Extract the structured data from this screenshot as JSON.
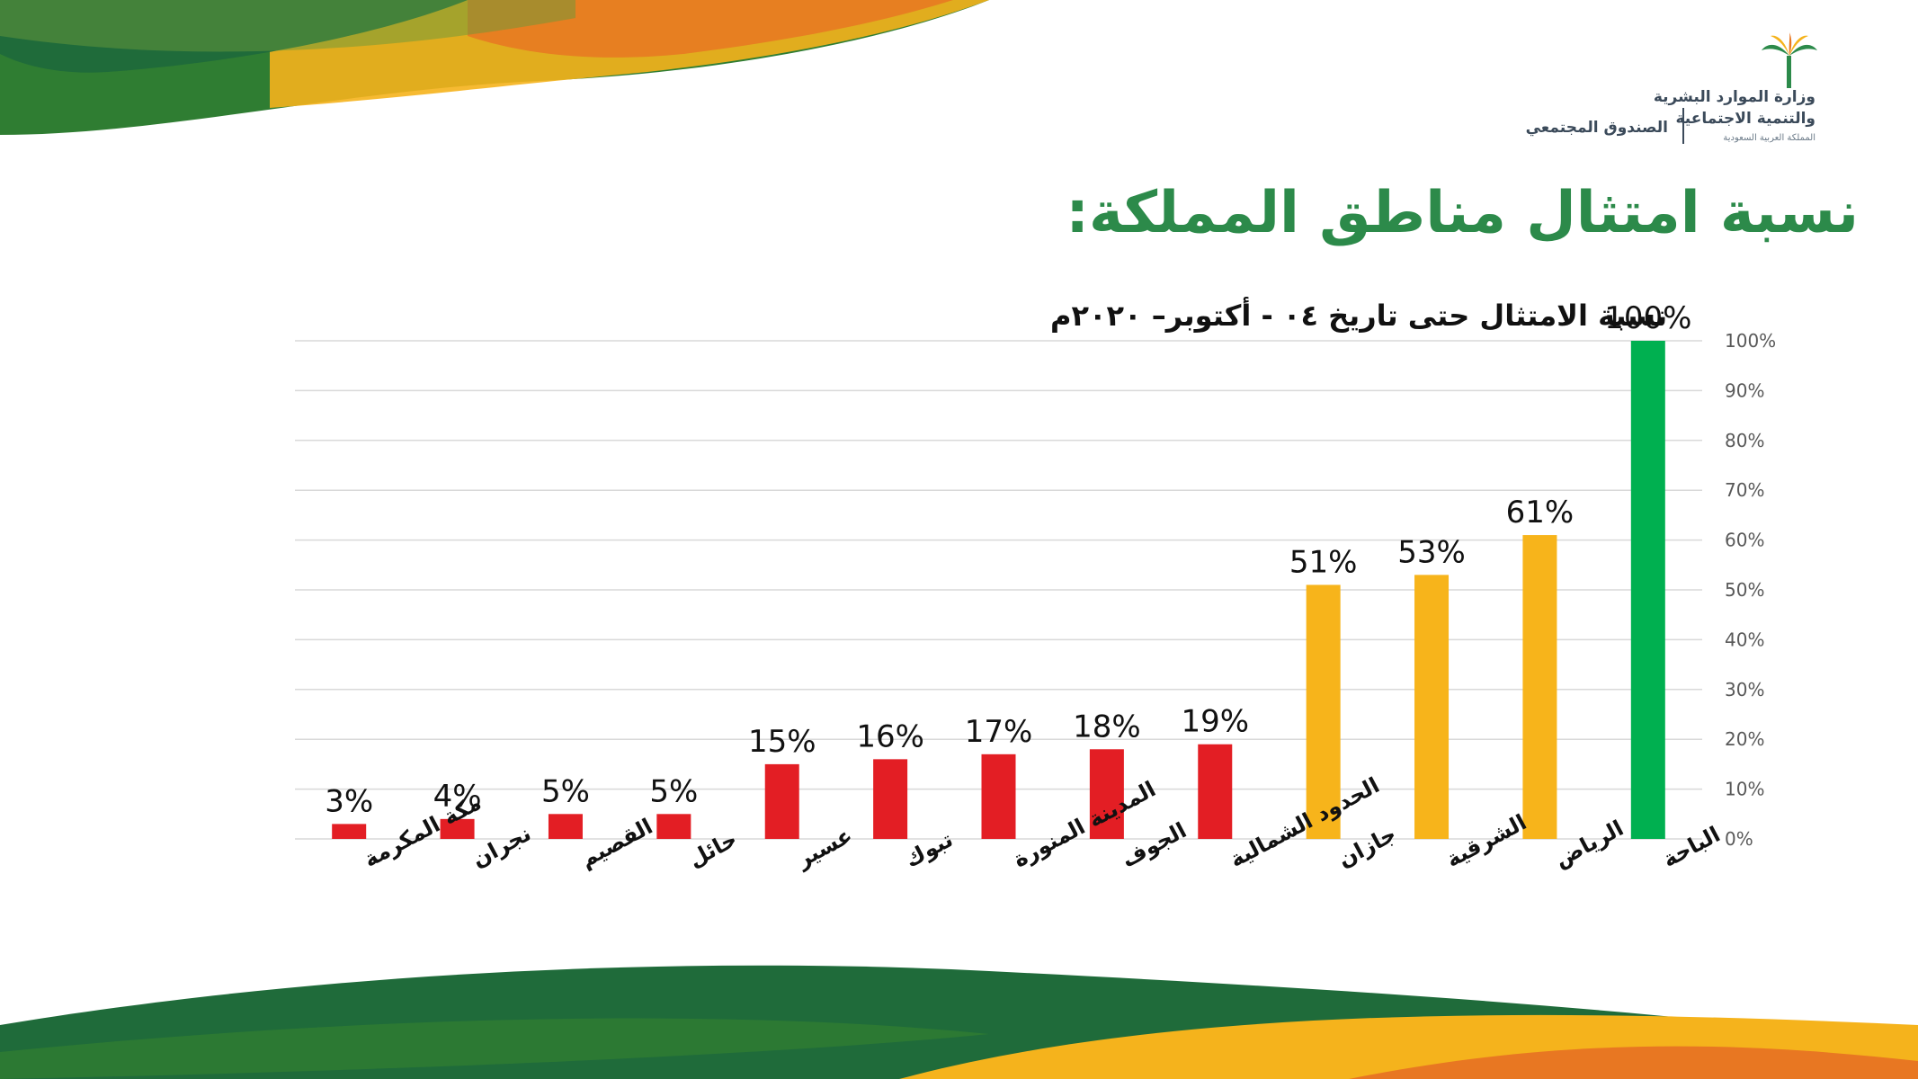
{
  "header": {
    "title": "نسبة امتثال مناطق المملكة:",
    "logo_line1": "وزارة الموارد البشرية",
    "logo_line2": "والتنمية الاجتماعية",
    "logo_line3": "المملكة العربية السعودية",
    "fund_name": "الصندوق المجتمعي"
  },
  "chart_data": {
    "type": "bar",
    "title": "نسبة الامتثال حتى تاريخ ٠٤ - أكتوبر– ٢٠٢٠م",
    "categories": [
      "مكة المكرمة",
      "نجران",
      "القصيم",
      "حائل",
      "عسير",
      "تبوك",
      "المدينة المنورة",
      "الجوف",
      "الحدود الشمالية",
      "جازان",
      "الشرقية",
      "الرياض",
      "الباحة"
    ],
    "values": [
      3,
      4,
      5,
      5,
      15,
      16,
      17,
      18,
      19,
      51,
      53,
      61,
      100
    ],
    "data_labels": [
      "3%",
      "4%",
      "5%",
      "5%",
      "15%",
      "16%",
      "17%",
      "18%",
      "19%",
      "51%",
      "53%",
      "61%",
      "100%"
    ],
    "bar_colors": [
      "#e31e24",
      "#e31e24",
      "#e31e24",
      "#e31e24",
      "#e31e24",
      "#e31e24",
      "#e31e24",
      "#e31e24",
      "#e31e24",
      "#f7b41b",
      "#f7b41b",
      "#f7b41b",
      "#00b050"
    ],
    "yticks": [
      "0%",
      "10%",
      "20%",
      "30%",
      "40%",
      "50%",
      "60%",
      "70%",
      "80%",
      "90%",
      "100%"
    ],
    "ylim": [
      0,
      100
    ],
    "y_axis_side": "right",
    "grid": true,
    "legend": false
  },
  "colors": {
    "title_green": "#2c8a4a",
    "low": "#e31e24",
    "mid": "#f7b41b",
    "high": "#00b050"
  }
}
